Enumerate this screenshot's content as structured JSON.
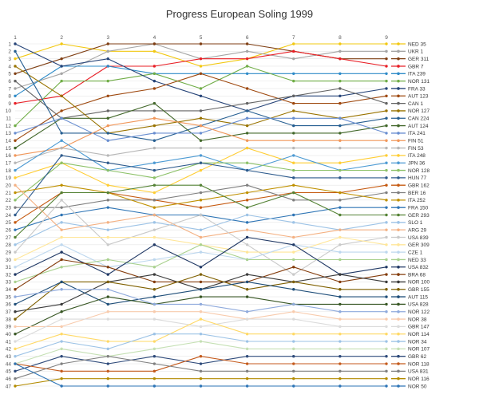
{
  "chart_data": {
    "type": "line",
    "title": "Progress European Soling 1999",
    "x": [
      1,
      2,
      3,
      4,
      5,
      6,
      7,
      8,
      9
    ],
    "y_ticks": [
      1,
      2,
      3,
      4,
      5,
      6,
      7,
      8,
      9,
      10,
      11,
      12,
      13,
      14,
      15,
      16,
      17,
      18,
      19,
      20,
      21,
      22,
      23,
      24,
      25,
      26,
      27,
      28,
      29,
      30,
      31,
      32,
      33,
      34,
      35,
      36,
      37,
      38,
      39,
      40,
      41,
      42,
      43,
      44,
      45,
      46,
      47
    ],
    "ylim": [
      1,
      47
    ],
    "y_reversed": true,
    "grid": true,
    "legend_position": "right",
    "series": [
      {
        "name": "NED 35",
        "color": "#f2c811",
        "values": [
          3,
          1,
          2,
          2,
          4,
          3,
          1,
          1,
          1
        ]
      },
      {
        "name": "UKR 1",
        "color": "#a5a5a5",
        "values": [
          7,
          5,
          2,
          1,
          3,
          2,
          3,
          2,
          2
        ]
      },
      {
        "name": "GER 311",
        "color": "#7f3f14",
        "values": [
          5,
          3,
          1,
          1,
          1,
          1,
          2,
          3,
          3
        ]
      },
      {
        "name": "GBR 7",
        "color": "#e81f26",
        "values": [
          9,
          8,
          4,
          4,
          3,
          3,
          2,
          3,
          4
        ]
      },
      {
        "name": "ITA 239",
        "color": "#2e8bc8",
        "values": [
          8,
          4,
          4,
          5,
          5,
          5,
          5,
          5,
          5
        ]
      },
      {
        "name": "NOR 131",
        "color": "#70ad47",
        "values": [
          12,
          6,
          6,
          5,
          7,
          4,
          6,
          6,
          6
        ]
      },
      {
        "name": "FRA 33",
        "color": "#264478",
        "values": [
          1,
          4,
          3,
          6,
          8,
          10,
          8,
          8,
          7
        ]
      },
      {
        "name": "AUT 123",
        "color": "#9e480e",
        "values": [
          14,
          10,
          8,
          7,
          5,
          7,
          9,
          9,
          8
        ]
      },
      {
        "name": "CAN 1",
        "color": "#636363",
        "values": [
          6,
          11,
          10,
          10,
          10,
          9,
          8,
          7,
          9
        ]
      },
      {
        "name": "NOR 127",
        "color": "#997300",
        "values": [
          4,
          8,
          13,
          12,
          11,
          12,
          10,
          11,
          10
        ]
      },
      {
        "name": "CAN 224",
        "color": "#255e91",
        "values": [
          2,
          13,
          13,
          14,
          12,
          10,
          12,
          12,
          11
        ]
      },
      {
        "name": "AUT 124",
        "color": "#43682b",
        "values": [
          15,
          11,
          11,
          9,
          14,
          13,
          13,
          13,
          12
        ]
      },
      {
        "name": "ITA 241",
        "color": "#698ed0",
        "values": [
          13,
          11,
          14,
          13,
          13,
          11,
          11,
          11,
          13
        ]
      },
      {
        "name": "FIN 51",
        "color": "#f1975a",
        "values": [
          16,
          15,
          12,
          11,
          12,
          14,
          14,
          14,
          14
        ]
      },
      {
        "name": "FIN 53",
        "color": "#b7b7b7",
        "values": [
          17,
          15,
          16,
          15,
          15,
          15,
          15,
          15,
          15
        ]
      },
      {
        "name": "ITA 248",
        "color": "#ffcd33",
        "values": [
          19,
          17,
          20,
          21,
          18,
          15,
          17,
          17,
          16
        ]
      },
      {
        "name": "JPN 36",
        "color": "#4c9ad3",
        "values": [
          18,
          14,
          18,
          17,
          16,
          18,
          16,
          18,
          17
        ]
      },
      {
        "name": "NOR 128",
        "color": "#8cc168",
        "values": [
          22,
          17,
          18,
          19,
          17,
          17,
          18,
          18,
          18
        ]
      },
      {
        "name": "HUN 77",
        "color": "#2d5a8c",
        "values": [
          24,
          16,
          17,
          18,
          17,
          18,
          19,
          19,
          19
        ]
      },
      {
        "name": "GBR 162",
        "color": "#c55a11",
        "values": [
          25,
          21,
          21,
          22,
          23,
          22,
          21,
          21,
          20
        ]
      },
      {
        "name": "BER 16",
        "color": "#7f7f7f",
        "values": [
          23,
          23,
          22,
          22,
          21,
          20,
          22,
          22,
          21
        ]
      },
      {
        "name": "ITA 252",
        "color": "#bf9000",
        "values": [
          21,
          20,
          21,
          23,
          22,
          21,
          20,
          21,
          22
        ]
      },
      {
        "name": "FRA 150",
        "color": "#2f75b5",
        "values": [
          26,
          24,
          23,
          24,
          24,
          25,
          24,
          23,
          23
        ]
      },
      {
        "name": "GER 293",
        "color": "#548235",
        "values": [
          27,
          21,
          21,
          20,
          20,
          23,
          21,
          24,
          24
        ]
      },
      {
        "name": "SLO 1",
        "color": "#9dc3e6",
        "values": [
          28,
          25,
          26,
          25,
          26,
          24,
          25,
          26,
          25
        ]
      },
      {
        "name": "ARG 29",
        "color": "#f4b183",
        "values": [
          20,
          26,
          25,
          24,
          27,
          26,
          27,
          26,
          26
        ]
      },
      {
        "name": "USA 839",
        "color": "#c9c9c9",
        "values": [
          29,
          22,
          28,
          26,
          24,
          28,
          32,
          28,
          27
        ]
      },
      {
        "name": "GER 309",
        "color": "#ffe699",
        "values": [
          30,
          27,
          27,
          27,
          28,
          29,
          29,
          27,
          28
        ]
      },
      {
        "name": "CZE 1",
        "color": "#bdd7ee",
        "values": [
          31,
          28,
          31,
          30,
          29,
          30,
          28,
          29,
          29
        ]
      },
      {
        "name": "NED 33",
        "color": "#a9d18e",
        "values": [
          33,
          31,
          30,
          31,
          28,
          30,
          30,
          30,
          30
        ]
      },
      {
        "name": "USA 832",
        "color": "#203864",
        "values": [
          32,
          29,
          32,
          28,
          31,
          27,
          28,
          32,
          31
        ]
      },
      {
        "name": "BRA 68",
        "color": "#843c0c",
        "values": [
          34,
          30,
          31,
          33,
          33,
          33,
          31,
          33,
          32
        ]
      },
      {
        "name": "NOR 100",
        "color": "#3b3b3b",
        "values": [
          37,
          36,
          33,
          32,
          34,
          32,
          33,
          32,
          33
        ]
      },
      {
        "name": "GBR 155",
        "color": "#7f6000",
        "values": [
          38,
          33,
          33,
          34,
          32,
          34,
          33,
          34,
          34
        ]
      },
      {
        "name": "AUT 115",
        "color": "#1f4e79",
        "values": [
          36,
          33,
          36,
          35,
          34,
          33,
          34,
          35,
          35
        ]
      },
      {
        "name": "USA 828",
        "color": "#375623",
        "values": [
          40,
          37,
          35,
          36,
          35,
          35,
          36,
          36,
          36
        ]
      },
      {
        "name": "NOR 122",
        "color": "#8faadc",
        "values": [
          35,
          34,
          34,
          36,
          36,
          37,
          36,
          37,
          37
        ]
      },
      {
        "name": "NOR 38",
        "color": "#f8cbad",
        "values": [
          39,
          39,
          37,
          37,
          37,
          38,
          37,
          38,
          38
        ]
      },
      {
        "name": "GBR 147",
        "color": "#dbdbdb",
        "values": [
          41,
          38,
          38,
          38,
          39,
          38,
          38,
          39,
          39
        ]
      },
      {
        "name": "NOR 114",
        "color": "#ffd966",
        "values": [
          42,
          40,
          41,
          41,
          38,
          40,
          40,
          40,
          40
        ]
      },
      {
        "name": "NOR 34",
        "color": "#9dc3e6",
        "values": [
          43,
          41,
          42,
          40,
          40,
          41,
          41,
          41,
          41
        ]
      },
      {
        "name": "NOR 107",
        "color": "#c5e0b4",
        "values": [
          44,
          42,
          43,
          42,
          41,
          42,
          42,
          42,
          42
        ]
      },
      {
        "name": "GBR 62",
        "color": "#2e4a7a",
        "values": [
          45,
          43,
          44,
          43,
          44,
          43,
          43,
          43,
          43
        ]
      },
      {
        "name": "NOR 118",
        "color": "#c45a1c",
        "values": [
          44,
          45,
          45,
          45,
          43,
          44,
          44,
          44,
          44
        ]
      },
      {
        "name": "USA 831",
        "color": "#808080",
        "values": [
          46,
          44,
          43,
          44,
          45,
          45,
          45,
          45,
          45
        ]
      },
      {
        "name": "NOR 116",
        "color": "#b38b00",
        "values": [
          47,
          46,
          46,
          46,
          46,
          46,
          46,
          46,
          46
        ]
      },
      {
        "name": "NOR 50",
        "color": "#2e75b6",
        "values": [
          44,
          47,
          47,
          47,
          47,
          47,
          47,
          47,
          47
        ]
      }
    ]
  }
}
